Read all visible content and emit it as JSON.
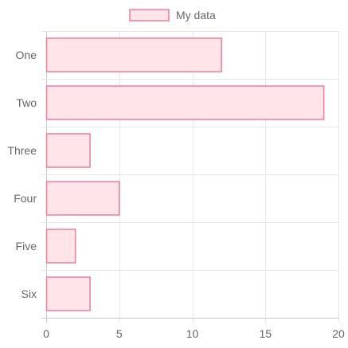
{
  "chart_data": {
    "type": "bar",
    "orientation": "horizontal",
    "categories": [
      "One",
      "Two",
      "Three",
      "Four",
      "Five",
      "Six"
    ],
    "series": [
      {
        "name": "My data",
        "values": [
          12,
          19,
          3,
          5,
          2,
          3
        ],
        "fill_color": "#ffe4ea",
        "border_color": "#f07c9c"
      }
    ],
    "xlim": [
      0,
      20
    ],
    "x_ticks": [
      0,
      5,
      10,
      15,
      20
    ],
    "legend": {
      "position": "top-center",
      "label": "My data"
    },
    "grid": true,
    "title": "",
    "xlabel": "",
    "ylabel": ""
  },
  "colors": {
    "grid": "#e6e6e6",
    "axis": "#c8c8c8",
    "tick_text": "#666666"
  }
}
